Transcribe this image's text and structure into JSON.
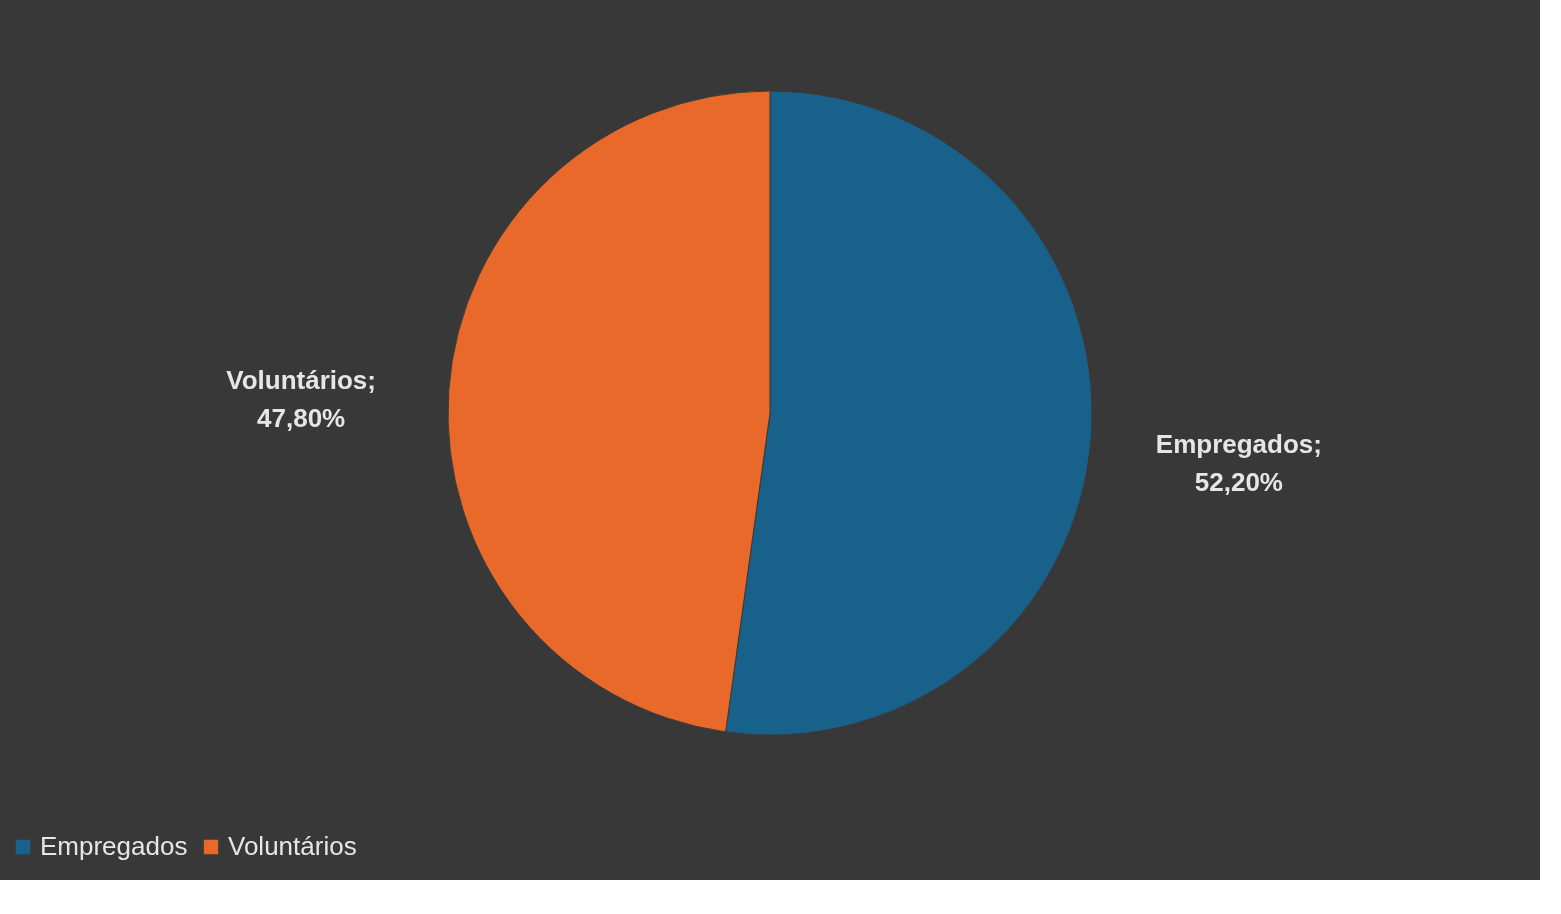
{
  "chart_data": {
    "type": "pie",
    "categories": [
      "Empregados",
      "Voluntários"
    ],
    "values": [
      52.2,
      47.8
    ],
    "colors": [
      "#18618a",
      "#e8692a"
    ],
    "value_labels": [
      "Empregados; 52,20%",
      "Voluntários; 47,80%"
    ],
    "legend": "bottom"
  }
}
